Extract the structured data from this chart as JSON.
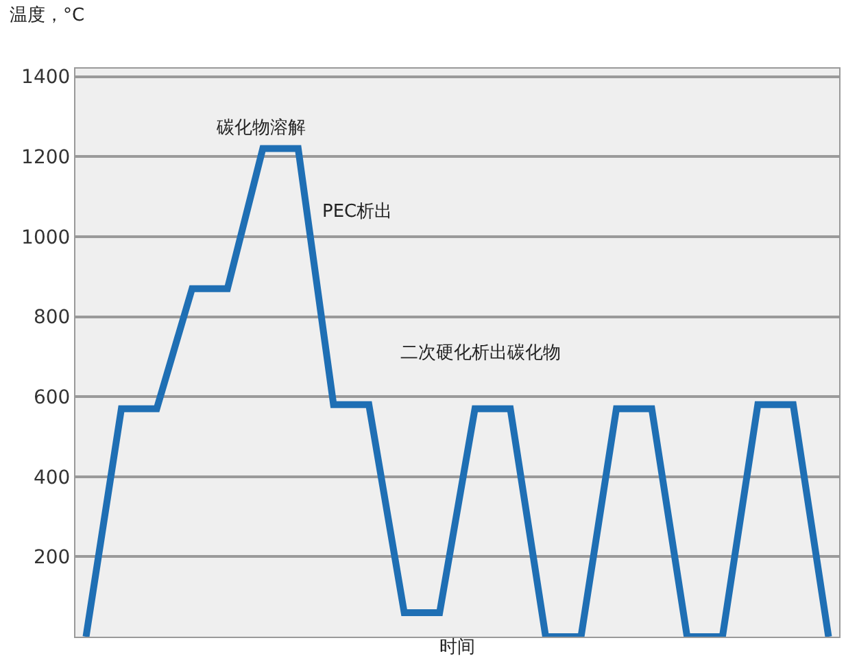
{
  "chart_data": {
    "type": "line",
    "xlabel": "时间",
    "ylabel": "温度，°C",
    "categories": [
      null,
      null,
      null,
      null,
      null,
      null,
      null,
      null,
      null,
      null,
      null,
      null,
      null,
      null,
      null,
      null,
      null,
      null,
      null,
      null,
      null,
      null
    ],
    "series": [
      {
        "color": "#1f6fb4",
        "values": [
          0,
          570,
          570,
          870,
          870,
          1220,
          1220,
          580,
          580,
          60,
          60,
          570,
          570,
          0,
          0,
          570,
          570,
          0,
          0,
          580,
          580,
          0
        ]
      }
    ],
    "ylim": [
      0,
      1420
    ],
    "yticks": [
      200,
      400,
      600,
      800,
      1000,
      1200,
      1400
    ],
    "tick_labels": "y",
    "grid": "y",
    "marker": "none",
    "line_style": "solid",
    "legend": false,
    "annotations": [
      "碳化物溶解",
      "PEC析出",
      "二次硬化析出碳化物"
    ]
  }
}
